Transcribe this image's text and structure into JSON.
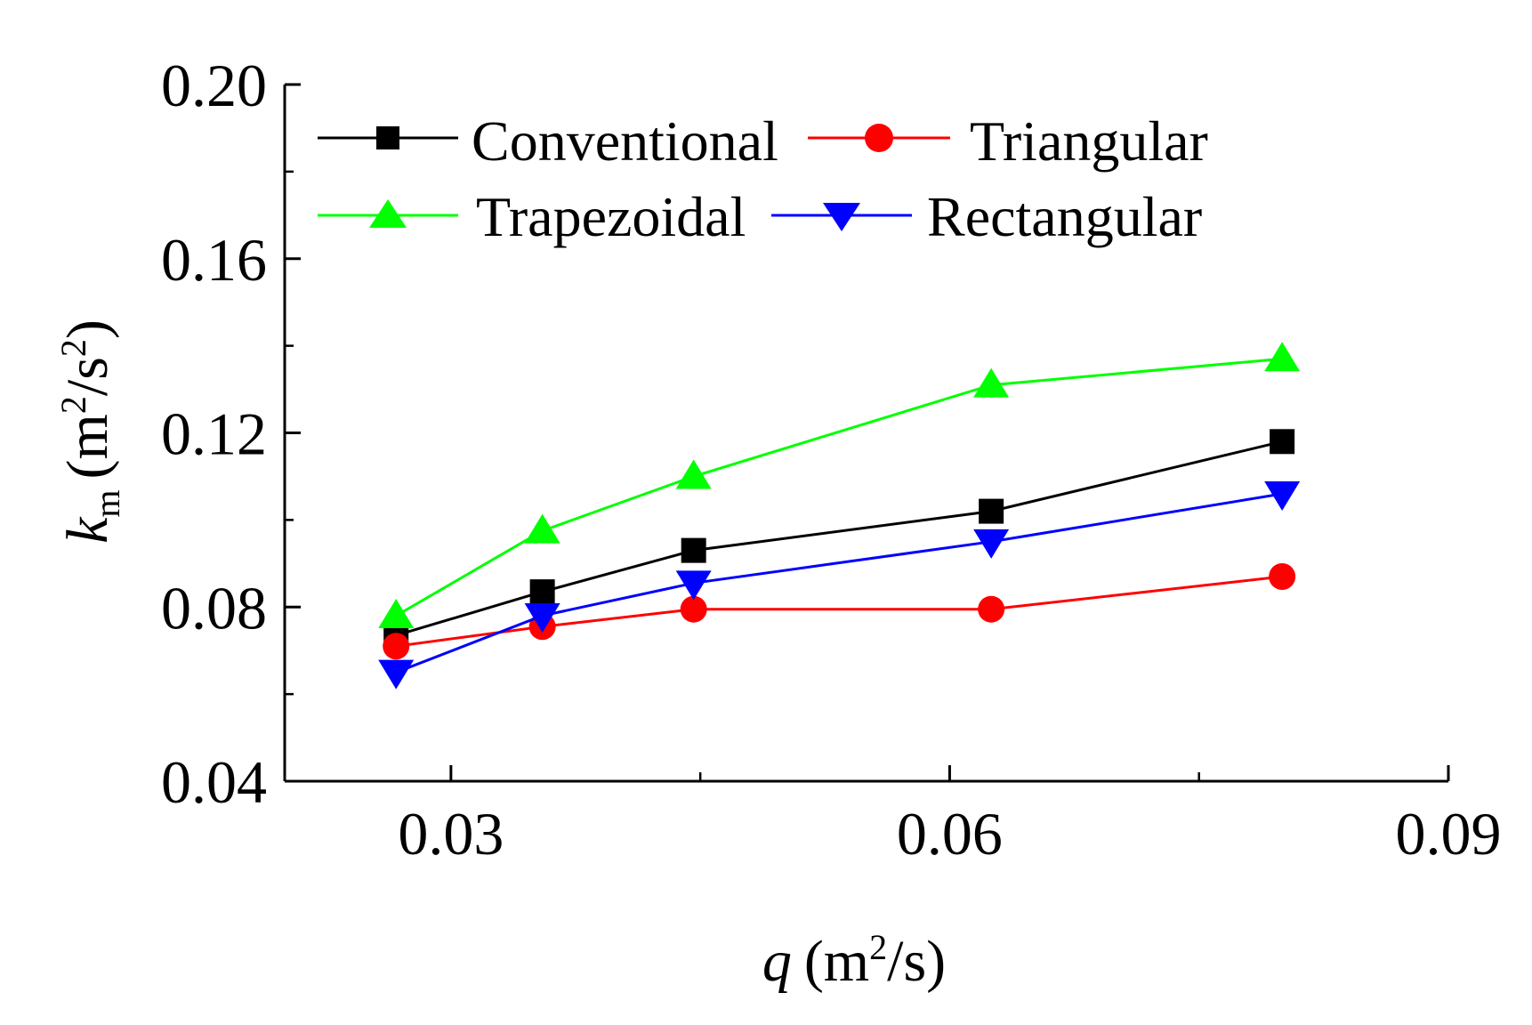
{
  "chart_data": {
    "type": "line",
    "x_axis": {
      "label": "q",
      "unit_open": "(m",
      "unit_sup": "2",
      "unit_close": "/s)",
      "range": [
        0.02,
        0.09
      ],
      "ticks": [
        0.03,
        0.06,
        0.09
      ],
      "tick_labels": [
        "0.03",
        "0.06",
        "0.09"
      ],
      "minor_ticks": [
        0.045,
        0.075
      ]
    },
    "y_axis": {
      "label": "k",
      "label_sub": "m",
      "unit_open": "(m",
      "unit_sup": "2",
      "unit_mid": "/s",
      "unit_sup2": "2",
      "unit_close": ")",
      "range": [
        0.04,
        0.2
      ],
      "ticks": [
        0.04,
        0.08,
        0.12,
        0.16,
        0.2
      ],
      "tick_labels": [
        "0.04",
        "0.08",
        "0.12",
        "0.16",
        "0.20"
      ],
      "minor_ticks": [
        0.06,
        0.1,
        0.14,
        0.18
      ]
    },
    "grid": false,
    "legend": {
      "placement": "top-left",
      "columns": 2
    },
    "series": [
      {
        "name": "Conventional",
        "color": "#000000",
        "marker": "square",
        "x": [
          0.0267,
          0.0355,
          0.0446,
          0.0625,
          0.08
        ],
        "y": [
          0.0735,
          0.0835,
          0.093,
          0.102,
          0.118
        ]
      },
      {
        "name": "Triangular",
        "color": "#ff0000",
        "marker": "circle",
        "x": [
          0.0267,
          0.0355,
          0.0446,
          0.0625,
          0.08
        ],
        "y": [
          0.071,
          0.0755,
          0.0795,
          0.0795,
          0.087
        ]
      },
      {
        "name": "Trapezoidal",
        "color": "#00ff00",
        "marker": "triangle-up",
        "x": [
          0.0267,
          0.0355,
          0.0446,
          0.0625,
          0.08
        ],
        "y": [
          0.078,
          0.0975,
          0.11,
          0.131,
          0.137
        ]
      },
      {
        "name": "Rectangular",
        "color": "#0000ff",
        "marker": "triangle-down",
        "x": [
          0.0267,
          0.0355,
          0.0446,
          0.0625,
          0.08
        ],
        "y": [
          0.065,
          0.078,
          0.0855,
          0.095,
          0.106
        ]
      }
    ]
  }
}
